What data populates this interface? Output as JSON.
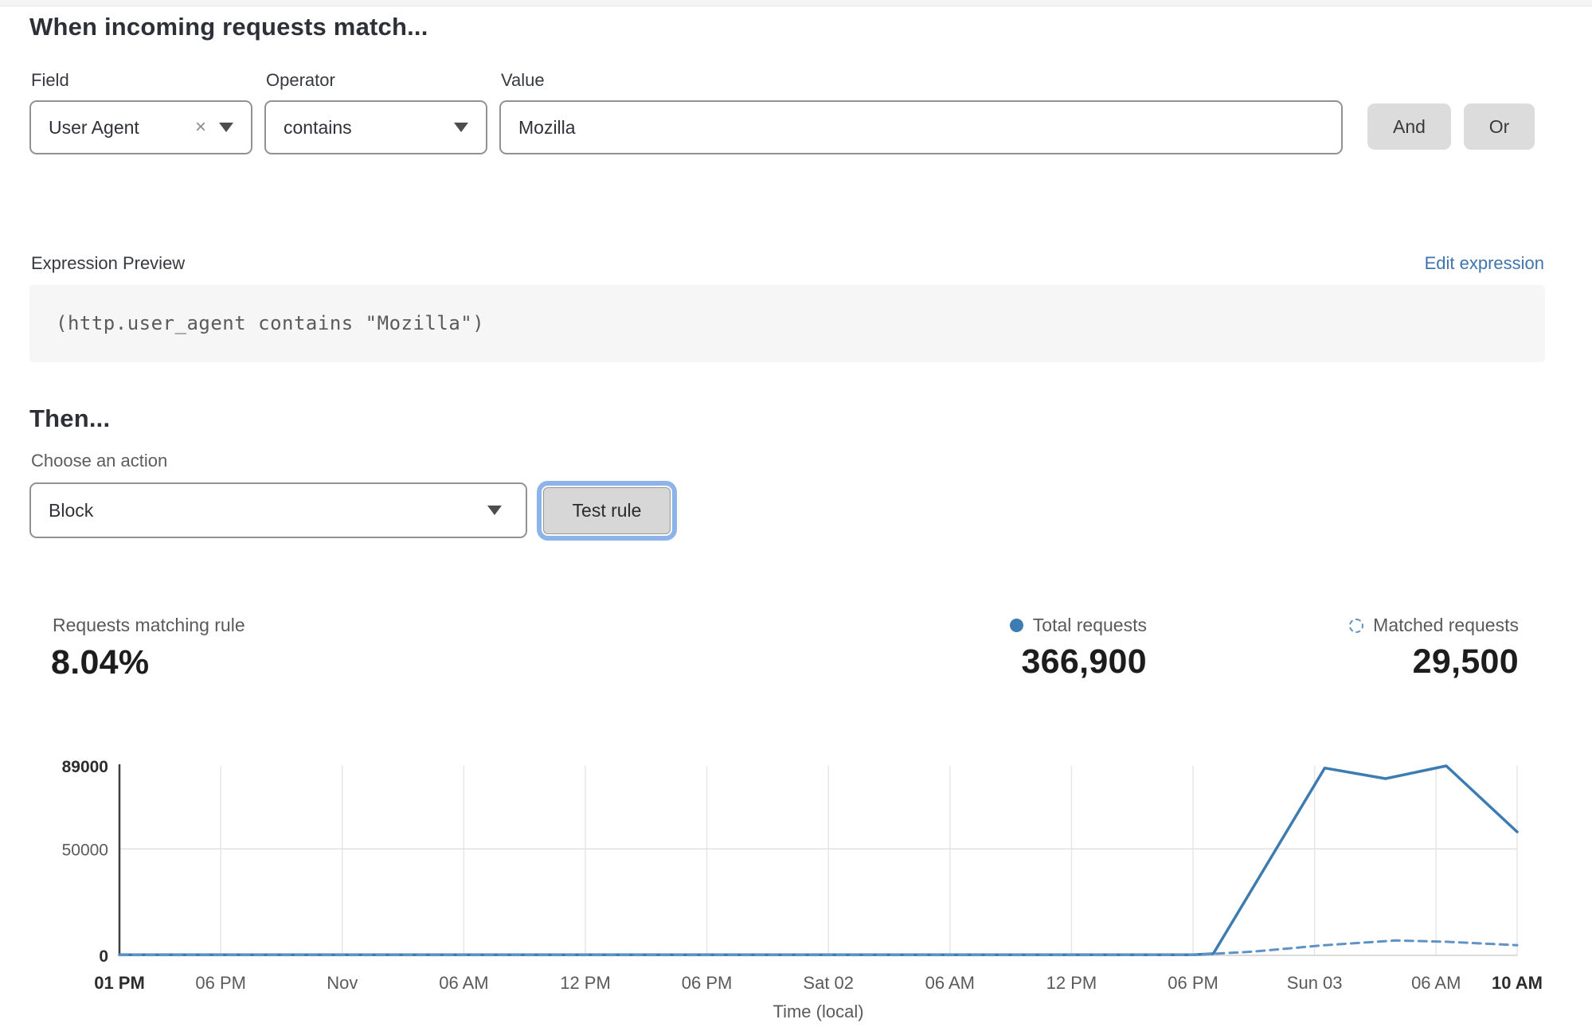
{
  "header": {
    "title": "When incoming requests match..."
  },
  "rule_builder": {
    "field": {
      "label": "Field",
      "value": "User Agent"
    },
    "operator": {
      "label": "Operator",
      "value": "contains"
    },
    "value": {
      "label": "Value",
      "text": "Mozilla"
    },
    "and_label": "And",
    "or_label": "Or"
  },
  "expression": {
    "label": "Expression Preview",
    "edit_link": "Edit expression",
    "code": "(http.user_agent contains \"Mozilla\")"
  },
  "action": {
    "heading": "Then...",
    "choose_label": "Choose an action",
    "selected": "Block",
    "test_button": "Test rule"
  },
  "stats": {
    "matching": {
      "label": "Requests matching rule",
      "value": "8.04%"
    },
    "total": {
      "label": "Total requests",
      "value": "366,900"
    },
    "matched": {
      "label": "Matched requests",
      "value": "29,500"
    }
  },
  "colors": {
    "accent_blue": "#3d7cb2",
    "link_blue": "#3f74ad",
    "focus_ring": "#8cb4e8",
    "button_gray": "#dcdcdc"
  },
  "chart_data": {
    "type": "line",
    "title": "",
    "xlabel": "Time (local)",
    "ylabel": "",
    "x_axis_unit": "hours from Thu Oct 31 01 PM (local)",
    "x_total_hours": 69,
    "ylim": [
      0,
      89000
    ],
    "grid": true,
    "legend_position": "top-right-above-chart",
    "yticks": [
      {
        "value": 0,
        "label": "0",
        "bold": true
      },
      {
        "value": 50000,
        "label": "50000",
        "bold": false
      },
      {
        "value": 89000,
        "label": "89000",
        "bold": true
      }
    ],
    "xticks": [
      {
        "hour": 0,
        "label": "01 PM",
        "bold": true
      },
      {
        "hour": 5,
        "label": "06 PM",
        "bold": false
      },
      {
        "hour": 11,
        "label": "Nov",
        "bold": false
      },
      {
        "hour": 17,
        "label": "06 AM",
        "bold": false
      },
      {
        "hour": 23,
        "label": "12 PM",
        "bold": false
      },
      {
        "hour": 29,
        "label": "06 PM",
        "bold": false
      },
      {
        "hour": 35,
        "label": "Sat 02",
        "bold": false
      },
      {
        "hour": 41,
        "label": "06 AM",
        "bold": false
      },
      {
        "hour": 47,
        "label": "12 PM",
        "bold": false
      },
      {
        "hour": 53,
        "label": "06 PM",
        "bold": false
      },
      {
        "hour": 59,
        "label": "Sun 03",
        "bold": false
      },
      {
        "hour": 65,
        "label": "06 AM",
        "bold": false
      },
      {
        "hour": 69,
        "label": "10 AM",
        "bold": true
      }
    ],
    "series": [
      {
        "name": "Total requests",
        "style": "solid",
        "color": "#3d7cb2",
        "width": 3.5,
        "points": [
          [
            0,
            300
          ],
          [
            5,
            300
          ],
          [
            11,
            300
          ],
          [
            17,
            300
          ],
          [
            23,
            300
          ],
          [
            29,
            300
          ],
          [
            35,
            300
          ],
          [
            41,
            300
          ],
          [
            47,
            300
          ],
          [
            53,
            300
          ],
          [
            54,
            800
          ],
          [
            59.5,
            88000
          ],
          [
            62.5,
            83000
          ],
          [
            65.5,
            89000
          ],
          [
            69,
            58000
          ]
        ]
      },
      {
        "name": "Matched requests",
        "style": "dashed",
        "color": "#5f93c6",
        "width": 3,
        "points": [
          [
            0,
            150
          ],
          [
            5,
            150
          ],
          [
            11,
            150
          ],
          [
            17,
            150
          ],
          [
            23,
            150
          ],
          [
            29,
            150
          ],
          [
            35,
            150
          ],
          [
            41,
            150
          ],
          [
            47,
            150
          ],
          [
            53,
            200
          ],
          [
            56,
            1800
          ],
          [
            59.5,
            4800
          ],
          [
            63,
            7000
          ],
          [
            65.5,
            6400
          ],
          [
            69,
            4800
          ]
        ]
      }
    ]
  }
}
